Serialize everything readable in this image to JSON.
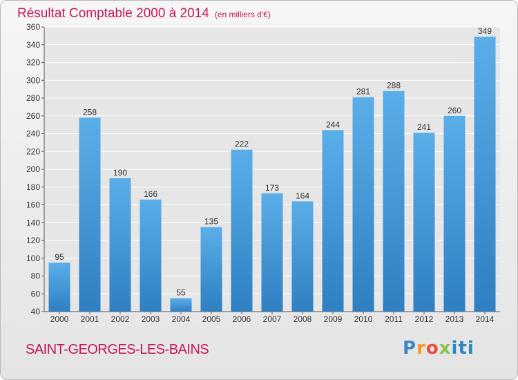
{
  "header": {
    "title": "Résultat Comptable 2000 à 2014",
    "unit": "(en milliers d'€)"
  },
  "footer": {
    "commune": "SAINT-GEORGES-LES-BAINS",
    "logo_text": "Proxiti"
  },
  "colors": {
    "title": "#c2185b",
    "bar_top": "#5aaee8",
    "bar_bottom": "#2f7fc1",
    "grid": "#ffffff",
    "plot_bg": "#e6e6e6"
  },
  "chart_data": {
    "type": "bar",
    "title": "Résultat Comptable 2000 à 2014",
    "ylabel": "(en milliers d'€)",
    "xlabel": "",
    "categories": [
      "2000",
      "2001",
      "2002",
      "2003",
      "2004",
      "2005",
      "2006",
      "2007",
      "2008",
      "2009",
      "2010",
      "2011",
      "2012",
      "2013",
      "2014"
    ],
    "values": [
      95,
      258,
      190,
      166,
      55,
      135,
      222,
      173,
      164,
      244,
      281,
      288,
      241,
      260,
      349
    ],
    "ylim": [
      40,
      360
    ],
    "yticks": [
      40,
      60,
      80,
      100,
      120,
      140,
      160,
      180,
      200,
      220,
      240,
      260,
      280,
      300,
      320,
      340,
      360
    ],
    "grid": true
  }
}
